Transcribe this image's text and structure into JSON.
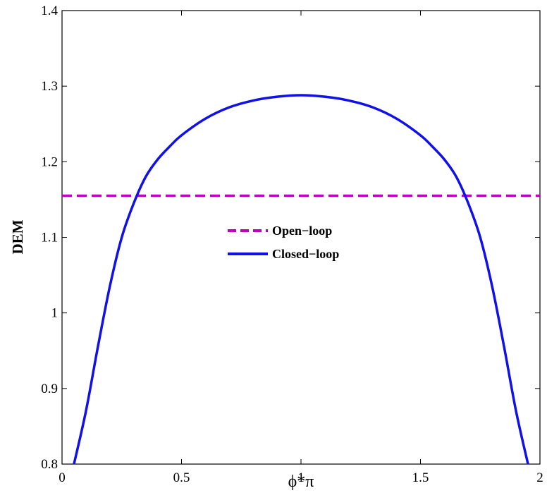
{
  "chart_data": {
    "type": "line",
    "title": "",
    "xlabel": "ϕ*π",
    "ylabel": "DEM",
    "xlim": [
      0,
      2
    ],
    "ylim": [
      0.8,
      1.4
    ],
    "xticks": [
      "0",
      "0.5",
      "1",
      "1.5",
      "2"
    ],
    "yticks": [
      "0.8",
      "0.9",
      "1",
      "1.1",
      "1.2",
      "1.3",
      "1.4"
    ],
    "grid": false,
    "legend_position": "center",
    "series": [
      {
        "name": "Open−loop",
        "style": "dashed",
        "color": "#c000c0",
        "x": [
          0,
          2
        ],
        "y": [
          1.155,
          1.155
        ]
      },
      {
        "name": "Closed−loop",
        "style": "solid",
        "color": "#1010e8",
        "x": [
          0.05,
          0.1,
          0.15,
          0.2,
          0.25,
          0.3,
          0.35,
          0.4,
          0.45,
          0.5,
          0.6,
          0.7,
          0.8,
          0.9,
          1.0,
          1.1,
          1.2,
          1.3,
          1.4,
          1.5,
          1.55,
          1.6,
          1.65,
          1.7,
          1.75,
          1.8,
          1.85,
          1.9,
          1.95
        ],
        "y": [
          0.8,
          0.87,
          0.955,
          1.035,
          1.1,
          1.145,
          1.18,
          1.203,
          1.22,
          1.235,
          1.257,
          1.272,
          1.281,
          1.286,
          1.288,
          1.286,
          1.281,
          1.272,
          1.257,
          1.235,
          1.22,
          1.203,
          1.18,
          1.145,
          1.1,
          1.035,
          0.955,
          0.87,
          0.8
        ]
      }
    ]
  }
}
